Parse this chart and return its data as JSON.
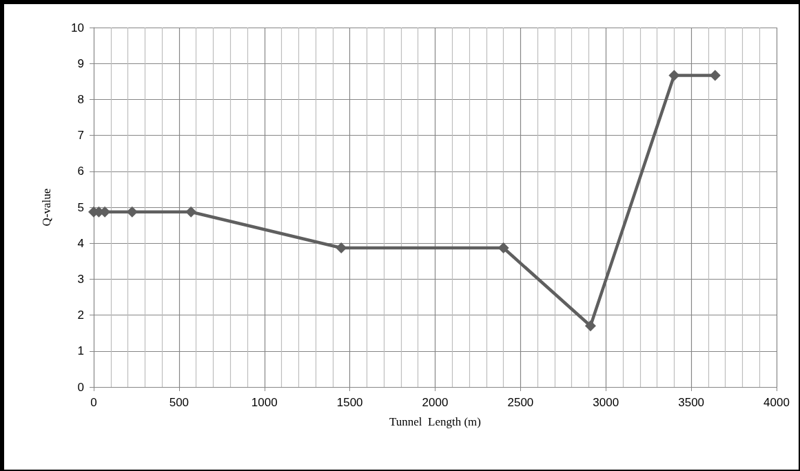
{
  "chart_data": {
    "type": "line",
    "xlabel": "Tunnel  Length (m)",
    "ylabel": "Q-value",
    "x": [
      0,
      30,
      65,
      225,
      570,
      1450,
      2400,
      2910,
      3400,
      3640
    ],
    "series": [
      {
        "color": "#5f5f5f",
        "values": [
          4.87,
          4.87,
          4.87,
          4.87,
          4.87,
          3.87,
          3.87,
          1.7,
          8.67,
          8.67
        ]
      }
    ],
    "xlim": [
      0,
      4000
    ],
    "xticks": [
      0,
      500,
      1000,
      1500,
      2000,
      2500,
      3000,
      3500,
      4000
    ],
    "ylim": [
      0,
      10
    ],
    "yticks": [
      0,
      1,
      2,
      3,
      4,
      5,
      6,
      7,
      8,
      9,
      10
    ],
    "grid": true,
    "marker": "diamond",
    "line_style": "solid"
  }
}
